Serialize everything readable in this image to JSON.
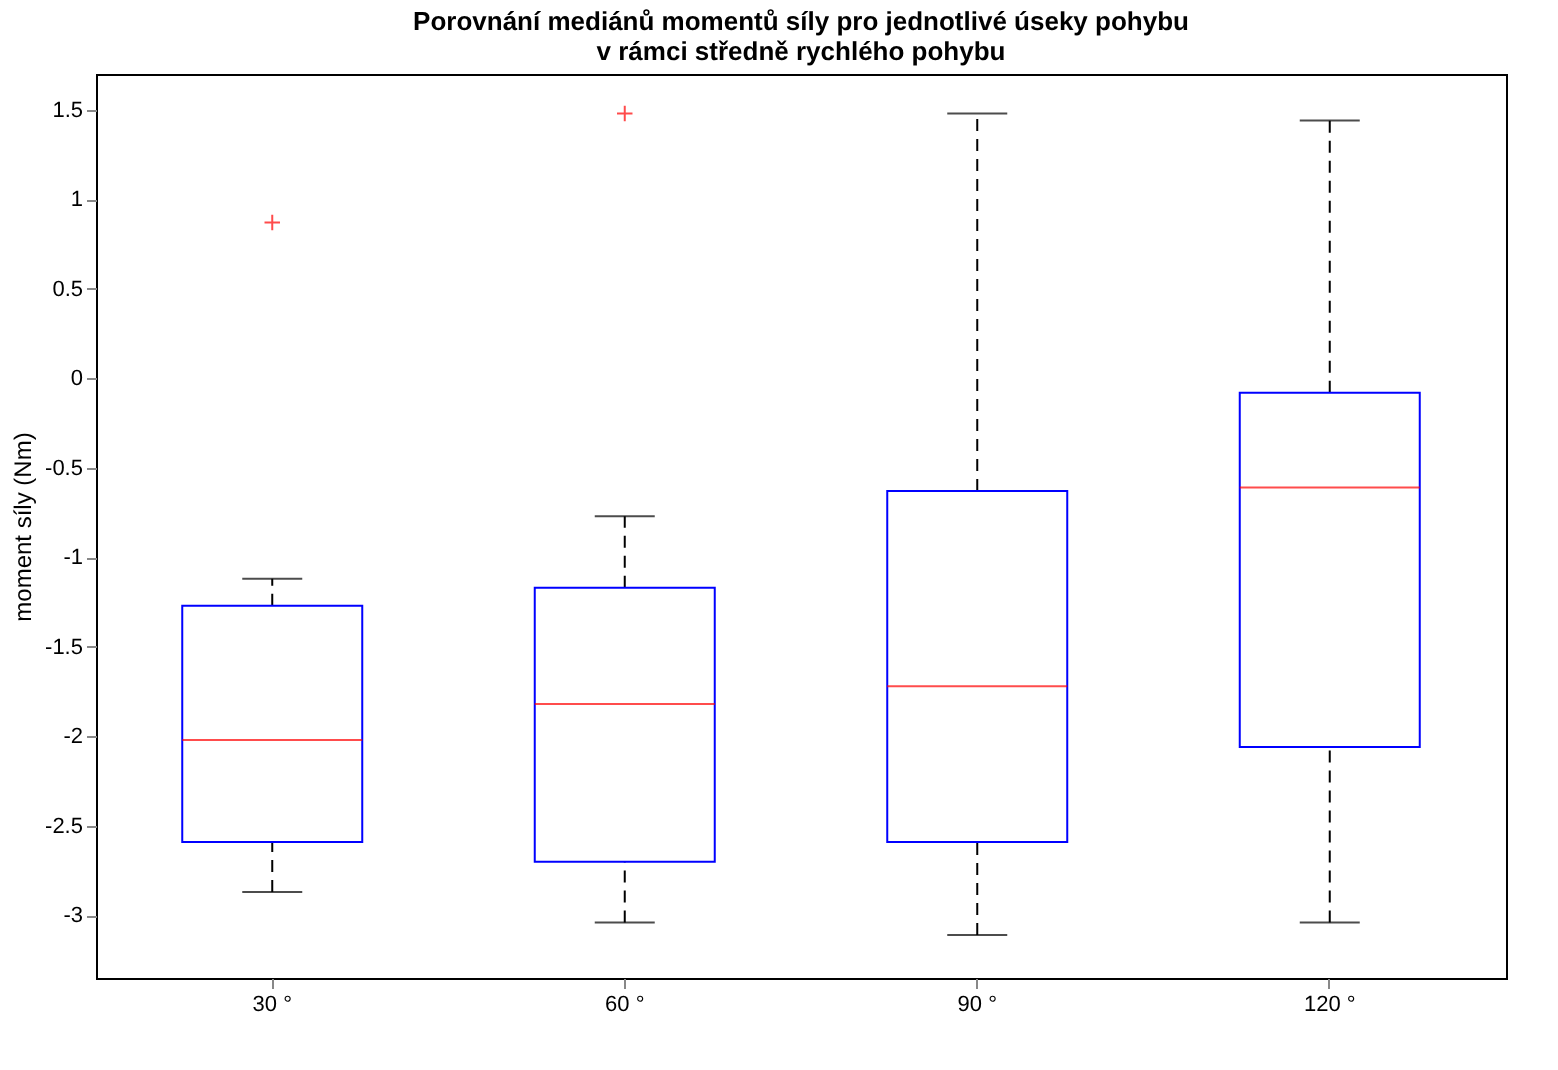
{
  "chart_data": {
    "type": "box",
    "title": "Porovnání mediánů momentů síly pro jednotlivé úseky pohybu\nv rámci středně rychlého pohybu",
    "ylabel": "moment síly (Nm)",
    "categories": [
      "30 °",
      "60 °",
      "90 °",
      "120 °"
    ],
    "boxes": [
      {
        "low": -2.87,
        "q1": -2.59,
        "median": -2.02,
        "q3": -1.27,
        "high": -1.12,
        "outliers": [
          0.87
        ]
      },
      {
        "low": -3.04,
        "q1": -2.7,
        "median": -1.82,
        "q3": -1.17,
        "high": -0.77,
        "outliers": [
          1.48
        ]
      },
      {
        "low": -3.11,
        "q1": -2.59,
        "median": -1.72,
        "q3": -0.63,
        "high": 1.48
      },
      {
        "low": -3.04,
        "q1": -2.06,
        "median": -0.61,
        "q3": -0.08,
        "high": 1.44
      }
    ],
    "ylim": [
      -3.35,
      1.7
    ],
    "yticks": [
      -3,
      -2.5,
      -2,
      -1.5,
      -1,
      -0.5,
      0,
      0.5,
      1,
      1.5
    ],
    "grid": false,
    "line_style": "dashed"
  }
}
